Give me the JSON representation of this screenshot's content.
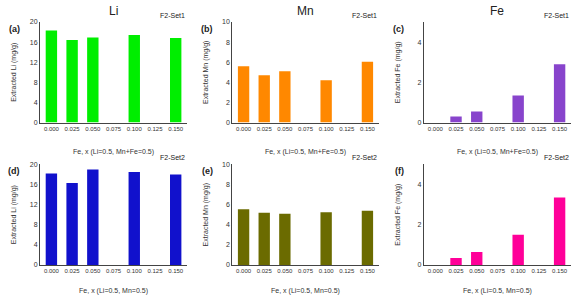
{
  "chart_data": [
    {
      "type": "bar",
      "title": "Li",
      "categories": [
        "0.000",
        "0.025",
        "0.050",
        "0.075",
        "0.100",
        "0.125",
        "0.150"
      ],
      "values": [
        18.3,
        16.4,
        16.9,
        0,
        17.4,
        0,
        16.8
      ],
      "color": "#00ee00",
      "xlabel": "Fe, x (Li=0.5, Mn+Fe=0.5)",
      "ylabel": "Extracted Li (mg/g)",
      "ylim": [
        0,
        20
      ],
      "yticks": [
        0,
        4,
        8,
        12,
        16,
        20
      ],
      "grid": false,
      "annotations": [
        "(a)",
        "F2-Set1"
      ]
    },
    {
      "type": "bar",
      "title": "Mn",
      "categories": [
        "0.000",
        "0.025",
        "0.050",
        "0.075",
        "0.100",
        "0.125",
        "0.150"
      ],
      "values": [
        5.6,
        4.7,
        5.1,
        0,
        4.2,
        0,
        6.05
      ],
      "color": "#ff8800",
      "xlabel": "Fe, x (Li=0.5, Mn+Fe=0.5)",
      "ylabel": "Extracted Mn (mg/g)",
      "ylim": [
        0,
        10
      ],
      "yticks": [
        0,
        2,
        4,
        6,
        8,
        10
      ],
      "grid": false,
      "annotations": [
        "(b)",
        "F2-Set1"
      ]
    },
    {
      "type": "bar",
      "title": "Fe",
      "categories": [
        "0.000",
        "0.025",
        "0.050",
        "0.075",
        "0.100",
        "0.125",
        "0.150"
      ],
      "values": [
        0,
        0.3,
        0.55,
        0,
        1.35,
        0,
        2.9
      ],
      "color": "#8844cc",
      "xlabel": "Fe, x (Li=0.5, Mn+Fe=0.5)",
      "ylabel": "Extracted Fe (mg/g)",
      "ylim": [
        0,
        5
      ],
      "yticks": [
        0,
        2,
        4
      ],
      "grid": false,
      "annotations": [
        "(c)",
        "F2-Set1"
      ]
    },
    {
      "type": "bar",
      "categories": [
        "0.000",
        "0.025",
        "0.050",
        "0.075",
        "0.100",
        "0.125",
        "0.150"
      ],
      "values": [
        18.2,
        16.3,
        19.0,
        0,
        18.5,
        0,
        18.0
      ],
      "color": "#1111cc",
      "xlabel": "Fe, x (Li=0.5, Mn=0.5)",
      "ylabel": "Extracted Li (mg/g)",
      "ylim": [
        0,
        20
      ],
      "yticks": [
        0,
        4,
        8,
        12,
        16,
        20
      ],
      "grid": false,
      "annotations": [
        "(d)",
        "F2-Set2"
      ]
    },
    {
      "type": "bar",
      "categories": [
        "0.000",
        "0.025",
        "0.050",
        "0.075",
        "0.100",
        "0.125",
        "0.150"
      ],
      "values": [
        5.55,
        5.2,
        5.1,
        0,
        5.25,
        0,
        5.4
      ],
      "color": "#6b6b00",
      "xlabel": "Fe, x (Li=0.5, Mn=0.5)",
      "ylabel": "Extracted Mn (mg/g)",
      "ylim": [
        0,
        10
      ],
      "yticks": [
        0,
        2,
        4,
        6,
        8,
        10
      ],
      "grid": false,
      "annotations": [
        "(e)",
        "F2-Set2"
      ]
    },
    {
      "type": "bar",
      "categories": [
        "0.000",
        "0.025",
        "0.050",
        "0.075",
        "0.100",
        "0.125",
        "0.150"
      ],
      "values": [
        0,
        0.35,
        0.65,
        0,
        1.5,
        0,
        3.35
      ],
      "color": "#ff0099",
      "xlabel": "Fe, x (Li=0.5, Mn=0.5)",
      "ylabel": "Extracted Fe (mg/g)",
      "ylim": [
        0,
        5
      ],
      "yticks": [
        0,
        2,
        4
      ],
      "grid": false,
      "annotations": [
        "(f)",
        "F2-Set2"
      ]
    }
  ]
}
